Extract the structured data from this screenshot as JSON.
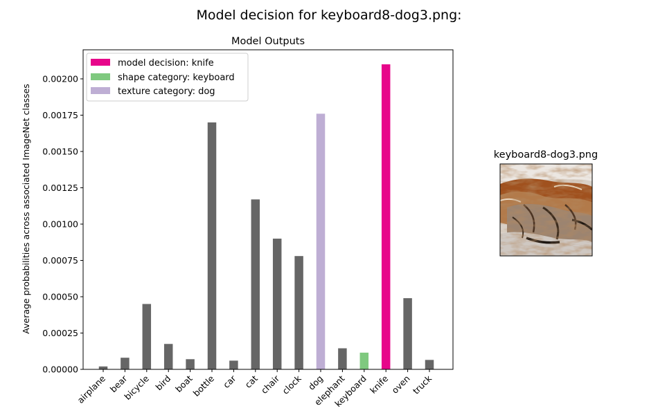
{
  "figure": {
    "suptitle": "Model decision for keyboard8-dog3.png:",
    "thumbnail_title": "keyboard8-dog3.png"
  },
  "chart_data": {
    "type": "bar",
    "title": "Model Outputs",
    "xlabel": "",
    "ylabel": "Average probabilities across associated ImageNet classes",
    "ylim": [
      0,
      0.0022
    ],
    "yticks": [
      "0.00000",
      "0.00025",
      "0.00050",
      "0.00075",
      "0.00100",
      "0.00125",
      "0.00150",
      "0.00175",
      "0.00200"
    ],
    "categories": [
      "airplane",
      "bear",
      "bicycle",
      "bird",
      "boat",
      "bottle",
      "car",
      "cat",
      "chair",
      "clock",
      "dog",
      "elephant",
      "keyboard",
      "knife",
      "oven",
      "truck"
    ],
    "values": [
      2e-05,
      8e-05,
      0.00045,
      0.000175,
      7e-05,
      0.0017,
      6e-05,
      0.00117,
      0.0009,
      0.00078,
      0.00176,
      0.000145,
      0.000115,
      0.0021,
      0.00049,
      6.5e-05
    ],
    "bar_roles": [
      "other",
      "other",
      "other",
      "other",
      "other",
      "other",
      "other",
      "other",
      "other",
      "other",
      "texture",
      "other",
      "shape",
      "decision",
      "other",
      "other"
    ],
    "colors": {
      "other": "#666666",
      "decision": "#e7068a",
      "shape": "#7fc97f",
      "texture": "#beaed4"
    },
    "legend": {
      "placement": "top-left",
      "entries": [
        {
          "label": "model decision: knife",
          "role": "decision"
        },
        {
          "label": "shape category: keyboard",
          "role": "shape"
        },
        {
          "label": "texture category: dog",
          "role": "texture"
        }
      ]
    }
  }
}
